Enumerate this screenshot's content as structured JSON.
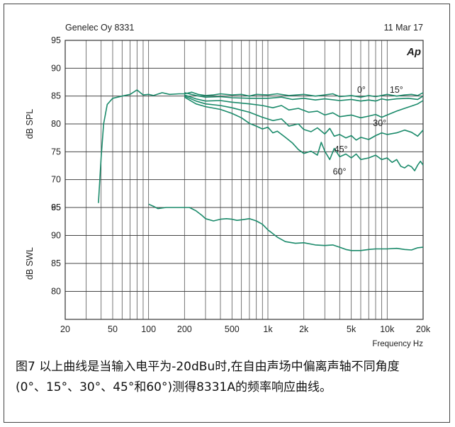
{
  "figure": {
    "header_left": "Genelec Oy 8331",
    "header_right": "11 Mar 17",
    "brand_mark": "Ap",
    "caption_line1": "图7 以上曲线是当输入电平为-20dBu时,在自由声场中偏离声轴不同角度",
    "caption_line2": "(0°、15°、30°、45°和60°)测得8331A的频率响应曲线。"
  },
  "chart_data": {
    "type": "line",
    "x_scale": "log",
    "xlim": [
      20,
      20000
    ],
    "xlabel": "Frequency Hz",
    "x_ticks": [
      20,
      50,
      100,
      200,
      500,
      1000,
      2000,
      5000,
      10000,
      20000
    ],
    "x_tick_labels": [
      "20",
      "50",
      "100",
      "200",
      "500",
      "1k",
      "2k",
      "5k",
      "10k",
      "20k"
    ],
    "grid": true,
    "color": "#1a8a6a",
    "panels": [
      {
        "ylabel": "dB SPL",
        "ylim": [
          65,
          95
        ],
        "y_ticks": [
          95,
          90,
          85,
          80,
          75,
          70,
          65
        ],
        "y_tick_labels": [
          "95",
          "90",
          "85",
          "80",
          "75",
          "70",
          "65"
        ],
        "series": [
          {
            "name": "0°",
            "points": [
              [
                38,
                65.8
              ],
              [
                40,
                74
              ],
              [
                42,
                80
              ],
              [
                45,
                83.5
              ],
              [
                50,
                84.6
              ],
              [
                60,
                85
              ],
              [
                70,
                85.3
              ],
              [
                80,
                86.1
              ],
              [
                90,
                85.2
              ],
              [
                100,
                85.3
              ],
              [
                110,
                85.1
              ],
              [
                130,
                85.6
              ],
              [
                150,
                85.3
              ],
              [
                180,
                85.4
              ],
              [
                200,
                85.4
              ],
              [
                230,
                85.7
              ],
              [
                260,
                85.3
              ],
              [
                300,
                85.1
              ],
              [
                350,
                85.2
              ],
              [
                400,
                85.4
              ],
              [
                500,
                85.2
              ],
              [
                600,
                85.3
              ],
              [
                700,
                85
              ],
              [
                800,
                85.3
              ],
              [
                1000,
                85.2
              ],
              [
                1200,
                85.4
              ],
              [
                1500,
                85.1
              ],
              [
                2000,
                85.3
              ],
              [
                2500,
                85
              ],
              [
                3000,
                85.2
              ],
              [
                3500,
                85.4
              ],
              [
                4000,
                84.9
              ],
              [
                5000,
                85.1
              ],
              [
                6000,
                84.8
              ],
              [
                7000,
                85.1
              ],
              [
                8000,
                84.9
              ],
              [
                10000,
                85.3
              ],
              [
                12000,
                85
              ],
              [
                14000,
                85.2
              ],
              [
                16000,
                85.3
              ],
              [
                18000,
                85.1
              ],
              [
                20000,
                85.6
              ]
            ]
          },
          {
            "name": "15°",
            "points": [
              [
                200,
                85.6
              ],
              [
                250,
                85.1
              ],
              [
                300,
                84.8
              ],
              [
                400,
                84.9
              ],
              [
                500,
                84.7
              ],
              [
                700,
                84.6
              ],
              [
                1000,
                84.6
              ],
              [
                1300,
                84.8
              ],
              [
                1600,
                84.4
              ],
              [
                2000,
                84.6
              ],
              [
                2500,
                84.3
              ],
              [
                3000,
                84.5
              ],
              [
                4000,
                84.2
              ],
              [
                5000,
                84.4
              ],
              [
                6000,
                84.1
              ],
              [
                7000,
                84.3
              ],
              [
                8000,
                84.1
              ],
              [
                9000,
                84.5
              ],
              [
                10000,
                84.3
              ],
              [
                12000,
                84.5
              ],
              [
                15000,
                84.6
              ],
              [
                18000,
                84.4
              ],
              [
                20000,
                85
              ]
            ]
          },
          {
            "name": "30°",
            "points": [
              [
                200,
                85.2
              ],
              [
                250,
                84.5
              ],
              [
                300,
                84.1
              ],
              [
                400,
                84.2
              ],
              [
                500,
                83.9
              ],
              [
                700,
                83.6
              ],
              [
                900,
                83.3
              ],
              [
                1100,
                82.9
              ],
              [
                1300,
                83.3
              ],
              [
                1500,
                82.5
              ],
              [
                1800,
                82.8
              ],
              [
                2200,
                82.1
              ],
              [
                2600,
                82.3
              ],
              [
                3000,
                81.6
              ],
              [
                3500,
                82
              ],
              [
                4000,
                81.3
              ],
              [
                5000,
                81.6
              ],
              [
                6000,
                81.1
              ],
              [
                7000,
                81.4
              ],
              [
                8000,
                81.7
              ],
              [
                9000,
                81.2
              ],
              [
                10000,
                81.6
              ],
              [
                12000,
                82.3
              ],
              [
                14000,
                82.8
              ],
              [
                16000,
                83.2
              ],
              [
                18000,
                83.6
              ],
              [
                20000,
                84.2
              ]
            ]
          },
          {
            "name": "45°",
            "points": [
              [
                200,
                85
              ],
              [
                250,
                84.1
              ],
              [
                300,
                83.6
              ],
              [
                400,
                83.3
              ],
              [
                500,
                82.9
              ],
              [
                700,
                82.1
              ],
              [
                900,
                81.2
              ],
              [
                1100,
                80.6
              ],
              [
                1300,
                80.9
              ],
              [
                1500,
                79.6
              ],
              [
                1800,
                80
              ],
              [
                2000,
                79
              ],
              [
                2300,
                78.6
              ],
              [
                2600,
                79.3
              ],
              [
                3000,
                78.2
              ],
              [
                3300,
                79.2
              ],
              [
                3600,
                77.8
              ],
              [
                4000,
                78.1
              ],
              [
                4500,
                77.5
              ],
              [
                5000,
                77.9
              ],
              [
                5500,
                77.1
              ],
              [
                6000,
                77.6
              ],
              [
                7000,
                77.2
              ],
              [
                8000,
                77.9
              ],
              [
                9000,
                78.4
              ],
              [
                10000,
                78.1
              ],
              [
                12000,
                78.4
              ],
              [
                14000,
                78.9
              ],
              [
                16000,
                78.5
              ],
              [
                18000,
                77.8
              ],
              [
                20000,
                78.9
              ]
            ]
          },
          {
            "name": "60°",
            "points": [
              [
                200,
                84.8
              ],
              [
                250,
                83.6
              ],
              [
                300,
                83.1
              ],
              [
                400,
                82.6
              ],
              [
                500,
                81.9
              ],
              [
                600,
                81.1
              ],
              [
                700,
                80.1
              ],
              [
                800,
                79.6
              ],
              [
                900,
                79.1
              ],
              [
                1000,
                79.4
              ],
              [
                1100,
                78.4
              ],
              [
                1200,
                78.7
              ],
              [
                1400,
                77.6
              ],
              [
                1600,
                76.6
              ],
              [
                1800,
                75.4
              ],
              [
                2000,
                74.7
              ],
              [
                2300,
                75.1
              ],
              [
                2600,
                74.4
              ],
              [
                2800,
                76.7
              ],
              [
                3000,
                75.1
              ],
              [
                3300,
                73.6
              ],
              [
                3600,
                75.6
              ],
              [
                4000,
                74.1
              ],
              [
                4500,
                74.6
              ],
              [
                5000,
                73.9
              ],
              [
                5500,
                74.6
              ],
              [
                6000,
                73.6
              ],
              [
                7000,
                73.9
              ],
              [
                8000,
                74.4
              ],
              [
                9000,
                73.6
              ],
              [
                10000,
                73.9
              ],
              [
                11000,
                73.1
              ],
              [
                12000,
                73.6
              ],
              [
                13000,
                72.4
              ],
              [
                14000,
                72.1
              ],
              [
                15000,
                72.6
              ],
              [
                16000,
                72.3
              ],
              [
                17000,
                71.6
              ],
              [
                18000,
                72.6
              ],
              [
                19000,
                73.3
              ],
              [
                20000,
                72.6
              ]
            ]
          }
        ],
        "annotations": [
          {
            "text": "0°",
            "x": 5600,
            "y": 85.6
          },
          {
            "text": "15°",
            "x": 10500,
            "y": 85.6
          },
          {
            "text": "30°",
            "x": 7600,
            "y": 79.6
          },
          {
            "text": "45°",
            "x": 3600,
            "y": 74.9
          },
          {
            "text": "60°",
            "x": 3500,
            "y": 70.9
          }
        ]
      },
      {
        "ylabel": "dB SWL",
        "ylim": [
          75,
          95
        ],
        "y_ticks": [
          95,
          90,
          85,
          80
        ],
        "y_tick_labels": [
          "95",
          "90",
          "85",
          "80"
        ],
        "series": [
          {
            "name": "",
            "points": [
              [
                100,
                95.6
              ],
              [
                110,
                95.2
              ],
              [
                120,
                94.8
              ],
              [
                140,
                95
              ],
              [
                160,
                95
              ],
              [
                180,
                95
              ],
              [
                200,
                95
              ],
              [
                220,
                95
              ],
              [
                250,
                94.4
              ],
              [
                280,
                93.6
              ],
              [
                300,
                93
              ],
              [
                350,
                92.6
              ],
              [
                400,
                92.9
              ],
              [
                450,
                93
              ],
              [
                500,
                92.9
              ],
              [
                550,
                92.7
              ],
              [
                600,
                92.8
              ],
              [
                700,
                93
              ],
              [
                800,
                92.6
              ],
              [
                900,
                92
              ],
              [
                1000,
                91
              ],
              [
                1200,
                89.7
              ],
              [
                1400,
                88.9
              ],
              [
                1700,
                88.6
              ],
              [
                2000,
                88.7
              ],
              [
                2500,
                88.3
              ],
              [
                3000,
                88.2
              ],
              [
                3500,
                88.3
              ],
              [
                4000,
                87.9
              ],
              [
                4500,
                87.5
              ],
              [
                5000,
                87.3
              ],
              [
                6000,
                87.3
              ],
              [
                7000,
                87.5
              ],
              [
                8000,
                87.6
              ],
              [
                10000,
                87.6
              ],
              [
                12000,
                87.7
              ],
              [
                14000,
                87.5
              ],
              [
                16000,
                87.4
              ],
              [
                18000,
                87.8
              ],
              [
                20000,
                87.9
              ]
            ]
          }
        ]
      }
    ]
  }
}
